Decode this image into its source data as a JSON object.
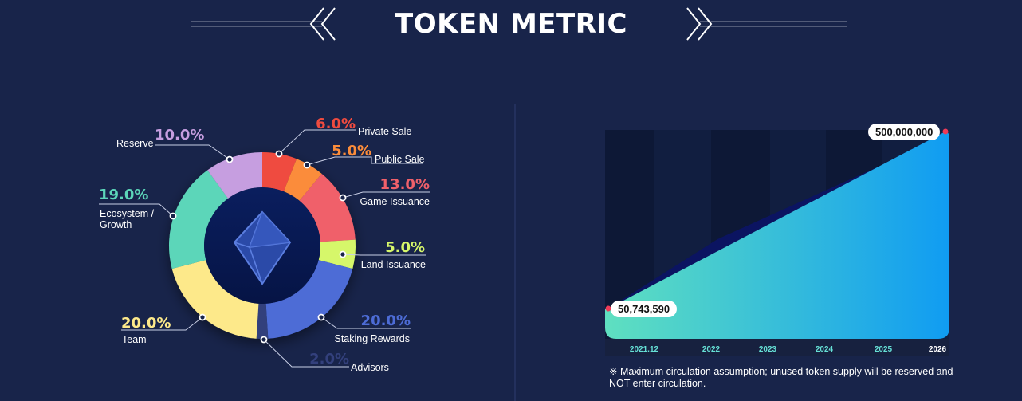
{
  "header": {
    "title": "TOKEN METRIC"
  },
  "colors": {
    "background": "#18244a",
    "chart_bg": "#0f1b3a",
    "area_start": "#5fe0c0",
    "area_end": "#109cf2",
    "dark_wedge": "#0b1461"
  },
  "icons": {
    "center_logo": "octahedron-logo"
  },
  "chart_data": [
    {
      "type": "pie",
      "title": "",
      "slices": [
        {
          "name": "Private Sale",
          "value": 6.0,
          "label": "6.0%",
          "color": "#ef4b3f"
        },
        {
          "name": "Public Sale",
          "value": 5.0,
          "label": "5.0%",
          "color": "#fb8c3a"
        },
        {
          "name": "Game Issuance",
          "value": 13.0,
          "label": "13.0%",
          "color": "#f0606a"
        },
        {
          "name": "Land Issuance",
          "value": 5.0,
          "label": "5.0%",
          "color": "#d6f76a"
        },
        {
          "name": "Staking Rewards",
          "value": 20.0,
          "label": "20.0%",
          "color": "#4d6cd6"
        },
        {
          "name": "Advisors",
          "value": 2.0,
          "label": "2.0%",
          "color": "#33407c"
        },
        {
          "name": "Team",
          "value": 20.0,
          "label": "20.0%",
          "color": "#fde98a"
        },
        {
          "name": "Ecosystem / Growth",
          "value": 19.0,
          "label": "19.0%",
          "color": "#5cd6b9",
          "label_lines": [
            "Ecosystem /",
            "Growth"
          ]
        },
        {
          "name": "Reserve",
          "value": 10.0,
          "label": "10.0%",
          "color": "#c69ee0"
        }
      ]
    },
    {
      "type": "area",
      "title": "",
      "x": [
        "2021.12",
        "2022",
        "2023",
        "2024",
        "2025",
        "2026"
      ],
      "series": [
        {
          "values": [
            50743590,
            null,
            null,
            null,
            null,
            500000000
          ]
        }
      ],
      "annotations": [
        {
          "x": "2021.12",
          "text": "50,743,590"
        },
        {
          "x": "2026",
          "text": "500,000,000"
        }
      ],
      "grid": true,
      "note": "※ Maximum circulation assumption; unused token supply will be reserved and NOT enter circulation."
    }
  ]
}
